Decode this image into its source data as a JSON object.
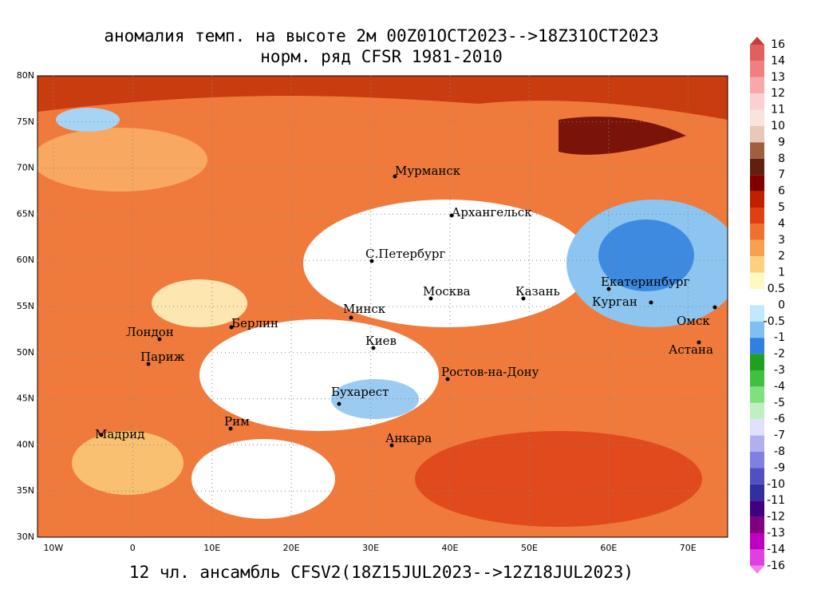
{
  "title": "аномалия темп. на высоте 2м 00Z01OCT2023-->18Z31OCT2023",
  "subtitle": "норм. ряд CFSR 1981-2010",
  "footer": "12 чл. ансамбль CFSV2(18Z15JUL2023-->12Z18JUL2023)",
  "map": {
    "lat_labels": [
      "80N",
      "75N",
      "70N",
      "65N",
      "60N",
      "55N",
      "50N",
      "45N",
      "40N",
      "35N",
      "30N"
    ],
    "lon_labels": [
      "10W",
      "0",
      "10E",
      "20E",
      "30E",
      "40E",
      "50E",
      "60E",
      "70E"
    ],
    "cities": [
      "Мурманск",
      "Архангельск",
      "С.Петербург",
      "Москва",
      "Казань",
      "Екатеринбург",
      "Курган",
      "Омск",
      "Астана",
      "Минск",
      "Берлин",
      "Лондон",
      "Париж",
      "Киев",
      "Ростов-на-Дону",
      "Бухарест",
      "Рим",
      "Мадрид",
      "Анкара"
    ]
  },
  "colorbar": {
    "labels": [
      "16",
      "14",
      "13",
      "12",
      "11",
      "10",
      "9",
      "8",
      "7",
      "6",
      "5",
      "4",
      "3",
      "2",
      "1",
      "0.5",
      "0",
      "-0.5",
      "-1",
      "-2",
      "-3",
      "-4",
      "-5",
      "-6",
      "-7",
      "-8",
      "-9",
      "-10",
      "-11",
      "-12",
      "-13",
      "-14",
      "-16"
    ]
  }
}
